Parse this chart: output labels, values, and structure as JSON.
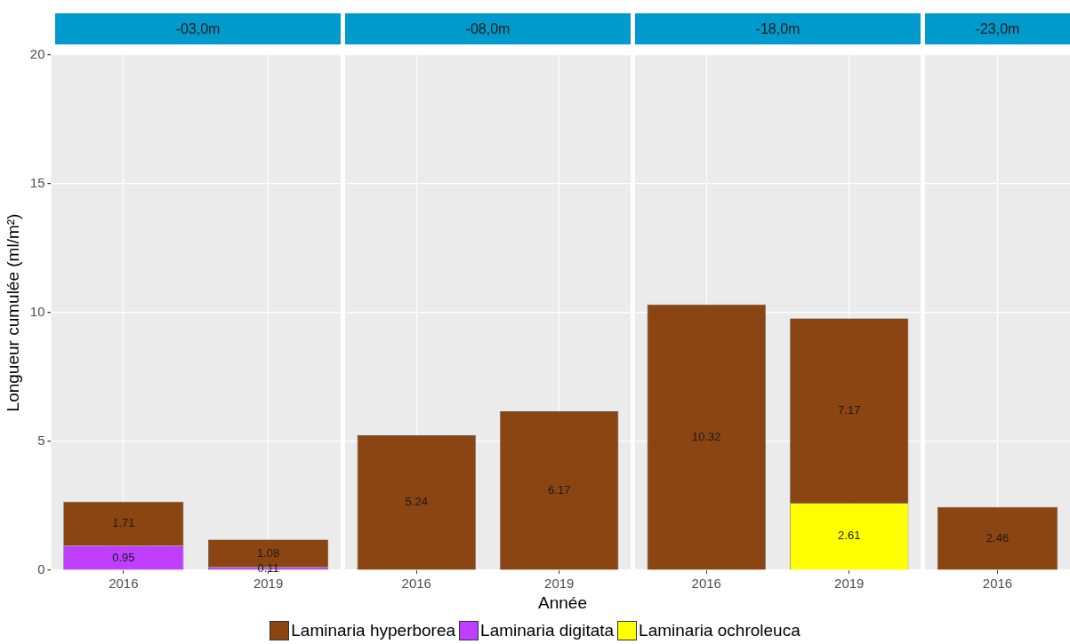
{
  "chart_data": [
    {
      "type": "bar",
      "title": "-03,0m",
      "ylabel": "Longueur cumulée (ml/m²)",
      "categories": [
        "2016",
        "2019"
      ],
      "stacked": true,
      "ylim": [
        0,
        20
      ],
      "yticks": [
        0,
        5,
        10,
        15,
        20
      ],
      "grid": true,
      "data_labels": true,
      "legend": "bottom",
      "series": [
        {
          "name": "Laminaria ochroleuca",
          "color": "#ffff00",
          "values": [
            null,
            null
          ]
        },
        {
          "name": "Laminaria digitata",
          "color": "#bf3eff",
          "values": [
            0.95,
            0.11
          ]
        },
        {
          "name": "Laminaria hyperborea",
          "color": "#8b4513",
          "values": [
            1.71,
            1.08
          ]
        }
      ]
    },
    {
      "type": "bar",
      "title": "-08,0m",
      "xlabel": "Année",
      "categories": [
        "2016",
        "2019"
      ],
      "stacked": true,
      "ylim": [
        0,
        20
      ],
      "yticks": [
        0,
        5,
        10,
        15,
        20
      ],
      "grid": true,
      "data_labels": true,
      "tick_labels": "x",
      "series": [
        {
          "color": "#ffff00",
          "values": [
            null,
            null
          ]
        },
        {
          "color": "#bf3eff",
          "values": [
            null,
            null
          ]
        },
        {
          "color": "#8b4513",
          "values": [
            5.24,
            6.17
          ]
        }
      ]
    },
    {
      "type": "bar",
      "title": "-18,0m",
      "categories": [
        "2016",
        "2019"
      ],
      "stacked": true,
      "ylim": [
        0,
        20
      ],
      "yticks": [
        0,
        5,
        10,
        15,
        20
      ],
      "grid": true,
      "data_labels": true,
      "tick_labels": "x",
      "series": [
        {
          "color": "#ffff00",
          "values": [
            null,
            2.61
          ]
        },
        {
          "color": "#bf3eff",
          "values": [
            null,
            null
          ]
        },
        {
          "color": "#8b4513",
          "values": [
            10.32,
            7.17
          ]
        }
      ]
    },
    {
      "type": "bar",
      "title": "-23,0m",
      "categories": [
        "2016"
      ],
      "stacked": true,
      "ylim": [
        0,
        20
      ],
      "yticks": [
        0,
        5,
        10,
        15,
        20
      ],
      "grid": true,
      "data_labels": true,
      "tick_labels": "x",
      "series": [
        {
          "color": "#ffff00",
          "values": [
            null
          ]
        },
        {
          "color": "#bf3eff",
          "values": [
            null
          ]
        },
        {
          "color": "#8b4513",
          "values": [
            2.46
          ]
        }
      ]
    }
  ]
}
